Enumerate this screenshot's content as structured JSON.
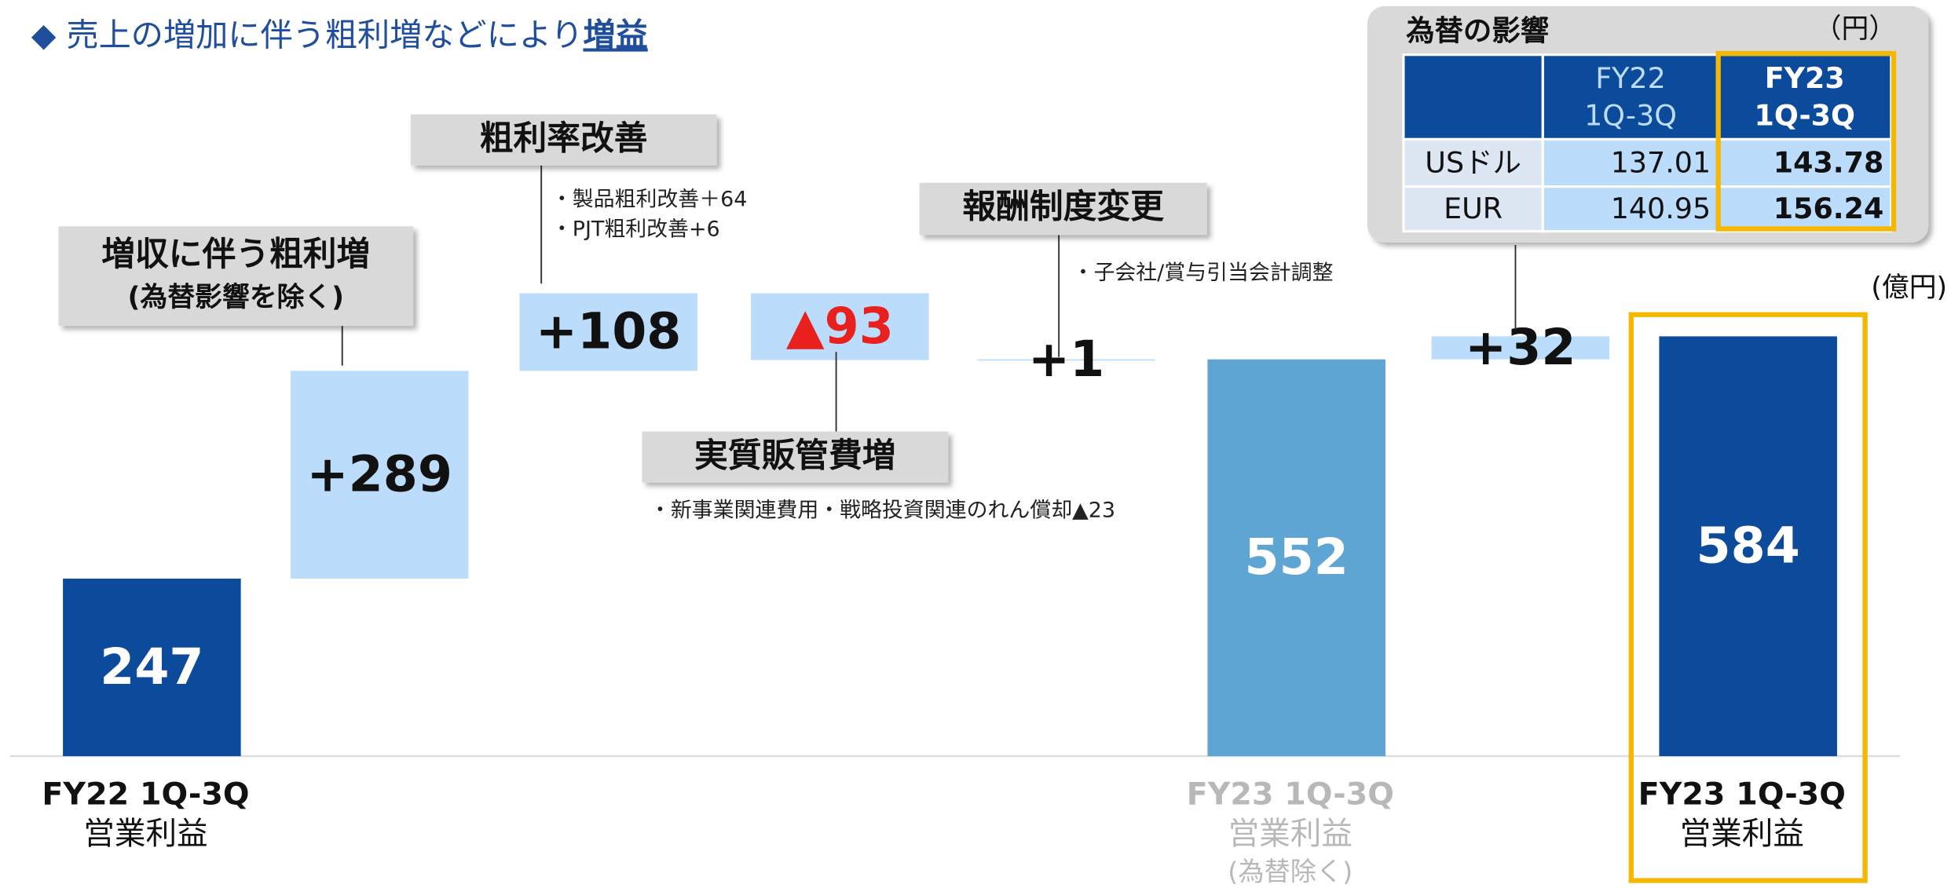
{
  "chart_data": {
    "type": "waterfall",
    "headline": "◆ 売上の増加に伴う粗利増などにより",
    "headline_emphasis": "増益",
    "unit_label": "(億円)",
    "categories": [
      "FY22 1Q-3Q",
      null,
      null,
      null,
      null,
      "FY23 1Q-3Q",
      null,
      "FY23 1Q-3Q"
    ],
    "category_sublabels": [
      "営業利益",
      null,
      null,
      null,
      null,
      "営業利益",
      null,
      "営業利益"
    ],
    "category_notes": [
      null,
      null,
      null,
      null,
      null,
      "(為替除く)",
      null,
      null
    ],
    "measures": [
      "absolute",
      "relative",
      "relative",
      "relative",
      "relative",
      "total",
      "relative",
      "total"
    ],
    "values": [
      247,
      289,
      108,
      -93,
      1,
      552,
      32,
      584
    ],
    "value_labels": [
      "247",
      "+289",
      "+108",
      "▲93",
      "+1",
      "552",
      "+32",
      "584"
    ],
    "colors": [
      "#0c4b9b",
      "#bcdcfb",
      "#bcdcfb",
      "#bcdcfb",
      "#bcdcfb",
      "#5ea5d4",
      "#bcdcfb",
      "#0c4b9b"
    ],
    "label_colors": [
      "#ffffff",
      "#111111",
      "#111111",
      "#e8201e",
      "#111111",
      "#ffffff",
      "#111111",
      "#ffffff"
    ],
    "callouts": [
      null,
      {
        "title": "増収に伴う粗利増",
        "subtitle": "(為替影響を除く)"
      },
      {
        "title": "粗利率改善",
        "notes": [
          "・製品粗利改善＋64",
          "・PJT粗利改善+6"
        ]
      },
      {
        "title": "実質販管費増",
        "notes": [
          "・新事業関連費用・戦略投資関連のれん償却▲23"
        ]
      },
      {
        "title": "報酬制度変更",
        "notes": [
          "・子会社/賞与引当会計調整"
        ]
      },
      null,
      null,
      null
    ]
  },
  "fx_table": {
    "title": "為替の影響",
    "unit": "（円）",
    "columns": [
      [
        "FY22",
        "1Q-3Q"
      ],
      [
        "FY23",
        "1Q-3Q"
      ]
    ],
    "rows": [
      [
        "USドル",
        "137.01",
        "143.78"
      ],
      [
        "EUR",
        "140.95",
        "156.24"
      ]
    ]
  }
}
